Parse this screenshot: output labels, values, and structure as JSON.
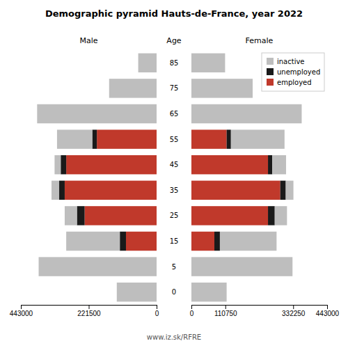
{
  "title": "Demographic pyramid Hauts-de-France, year 2022",
  "subtitle": "www.iz.sk/RFRE",
  "chart_data": [
    {
      "type": "bar",
      "orientation": "horizontal",
      "stacked": true,
      "title": "Male",
      "ylabel": "Age",
      "categories": [
        "0",
        "5",
        "15",
        "25",
        "35",
        "45",
        "55",
        "65",
        "75",
        "85"
      ],
      "xlim": [
        443000,
        0
      ],
      "xticks": [
        443000,
        221500,
        0
      ],
      "series": [
        {
          "name": "inactive",
          "color": "#bebebe",
          "values": [
            130000,
            385000,
            175000,
            40000,
            25000,
            20000,
            115000,
            390000,
            155000,
            60000
          ]
        },
        {
          "name": "unemployed",
          "color": "#1a1a1a",
          "values": [
            0,
            0,
            20000,
            25000,
            18000,
            18000,
            15000,
            0,
            0,
            0
          ]
        },
        {
          "name": "employed",
          "color": "#c0392b",
          "values": [
            0,
            0,
            100000,
            235000,
            300000,
            295000,
            195000,
            0,
            0,
            0
          ]
        }
      ]
    },
    {
      "type": "bar",
      "orientation": "horizontal",
      "stacked": true,
      "title": "Female",
      "legend": "upper right",
      "categories": [
        "0",
        "5",
        "15",
        "25",
        "35",
        "45",
        "55",
        "65",
        "75",
        "85"
      ],
      "xlim": [
        0,
        443000
      ],
      "xticks": [
        0,
        110750,
        332250,
        443000
      ],
      "series": [
        {
          "name": "inactive",
          "color": "#bebebe",
          "values": [
            115000,
            330000,
            185000,
            40000,
            25000,
            45000,
            175000,
            360000,
            200000,
            110000
          ]
        },
        {
          "name": "unemployed",
          "color": "#1a1a1a",
          "values": [
            0,
            0,
            18000,
            22000,
            18000,
            14000,
            14000,
            0,
            0,
            0
          ]
        },
        {
          "name": "employed",
          "color": "#c0392b",
          "values": [
            0,
            0,
            75000,
            250000,
            290000,
            250000,
            115000,
            0,
            0,
            0
          ]
        }
      ]
    }
  ]
}
